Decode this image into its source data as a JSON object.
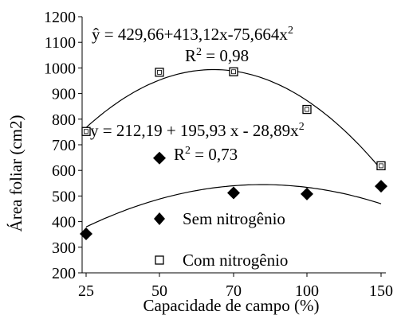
{
  "chart_data": {
    "type": "scatter",
    "xlabel": "Capacidade de campo (%)",
    "ylabel": "Área foliar (cm2)",
    "ylim": [
      200,
      1200
    ],
    "yticks": [
      200,
      300,
      400,
      500,
      600,
      700,
      800,
      900,
      1000,
      1100,
      1200
    ],
    "categories": [
      "25",
      "50",
      "70",
      "100",
      "150"
    ],
    "grid": false,
    "legend_position": "bottom-center",
    "series": [
      {
        "name": "Sem nitrogênio",
        "marker": "filled-diamond",
        "color": "#000000",
        "values": [
          352,
          648,
          512,
          508,
          538
        ],
        "equation": "y = 212,19 + 195,93 x - 28,89x",
        "equation_power": "2",
        "r2_prefix": "R",
        "r2_power": "2",
        "r2_value": " = 0,73",
        "coefficients": [
          212.19,
          195.93,
          -28.89
        ]
      },
      {
        "name": "Com nitrogênio",
        "marker": "open-square",
        "color": "#000000",
        "values": [
          752,
          983,
          985,
          838,
          618
        ],
        "equation": "ŷ = 429,66+413,12x-75,664x",
        "equation_power": "2",
        "r2_prefix": "R",
        "r2_power": "2",
        "r2_value": " = 0,98",
        "coefficients": [
          429.66,
          413.12,
          -75.664
        ]
      }
    ]
  }
}
